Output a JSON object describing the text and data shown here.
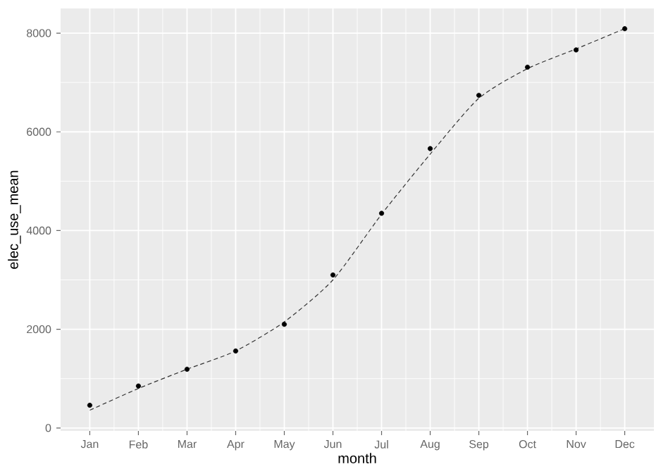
{
  "chart_data": {
    "type": "scatter",
    "xlabel": "month",
    "ylabel": "elec_use_mean",
    "categories": [
      "Jan",
      "Feb",
      "Mar",
      "Apr",
      "May",
      "Jun",
      "Jul",
      "Aug",
      "Sep",
      "Oct",
      "Nov",
      "Dec"
    ],
    "series": [
      {
        "color": "#000000",
        "marker": "circle",
        "values": [
          460,
          850,
          1190,
          1560,
          2100,
          3100,
          4350,
          5660,
          6740,
          7310,
          7660,
          8090
        ]
      },
      {
        "type": "line",
        "color": "#333333",
        "line_style": "dashed",
        "marker": "none",
        "x": [
          "Jan",
          "Feb",
          "Mar",
          "Apr",
          "May",
          "Jun",
          "Jul",
          "Aug",
          "Sep",
          "Oct",
          "Nov",
          "Dec"
        ],
        "values": [
          360,
          800,
          1190,
          1560,
          2150,
          3000,
          4330,
          5550,
          6680,
          7280,
          7680,
          8090
        ]
      }
    ],
    "ylim": [
      -60,
      8500
    ],
    "yticks": [
      0,
      2000,
      4000,
      6000,
      8000
    ],
    "grid": true
  }
}
